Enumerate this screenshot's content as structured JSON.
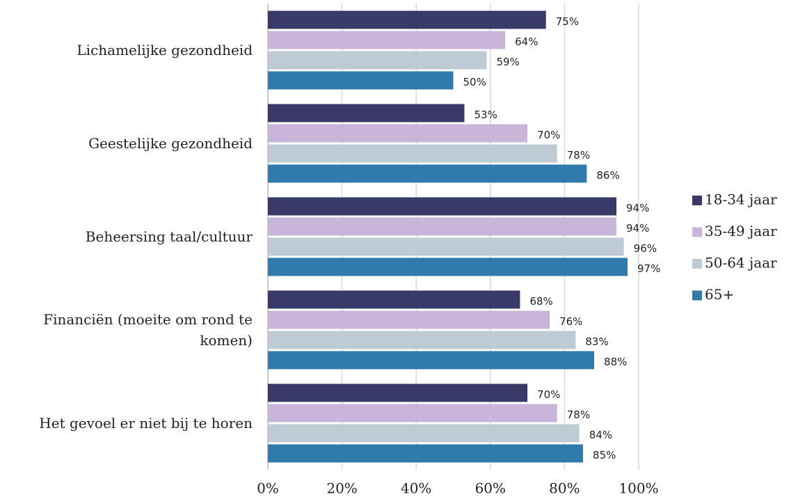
{
  "chart_data": {
    "type": "bar",
    "orientation": "horizontal",
    "categories": [
      "Lichamelijke gezondheid",
      "Geestelijke gezondheid",
      "Beheersing taal/cultuur",
      "Financiën (moeite om rond te komen)",
      "Het gevoel er niet bij te horen"
    ],
    "series": [
      {
        "name": "18-34 jaar",
        "color": "#3a3a69",
        "values": [
          75,
          53,
          94,
          68,
          70
        ],
        "value_labels": [
          "75%",
          "53%",
          "94%",
          "68%",
          "70%"
        ]
      },
      {
        "name": "35-49 jaar",
        "color": "#cab5da",
        "values": [
          64,
          70,
          94,
          76,
          78
        ],
        "value_labels": [
          "64%",
          "70%",
          "94%",
          "76%",
          "78%"
        ]
      },
      {
        "name": "50-64 jaar",
        "color": "#bfcbd4",
        "values": [
          59,
          78,
          96,
          83,
          84
        ],
        "value_labels": [
          "59%",
          "78%",
          "96%",
          "83%",
          "84%"
        ]
      },
      {
        "name": "65+",
        "color": "#2f7bac",
        "values": [
          50,
          86,
          97,
          88,
          85
        ],
        "value_labels": [
          "50%",
          "86%",
          "97%",
          "88%",
          "85%"
        ]
      }
    ],
    "xlim": [
      0,
      100
    ],
    "xticks": [
      {
        "value": 0,
        "label": "0%"
      },
      {
        "value": 20,
        "label": "20%"
      },
      {
        "value": 40,
        "label": "40%"
      },
      {
        "value": 60,
        "label": "60%"
      },
      {
        "value": 80,
        "label": "80%"
      },
      {
        "value": 100,
        "label": "100%"
      }
    ],
    "grid": true,
    "legend": "right"
  }
}
